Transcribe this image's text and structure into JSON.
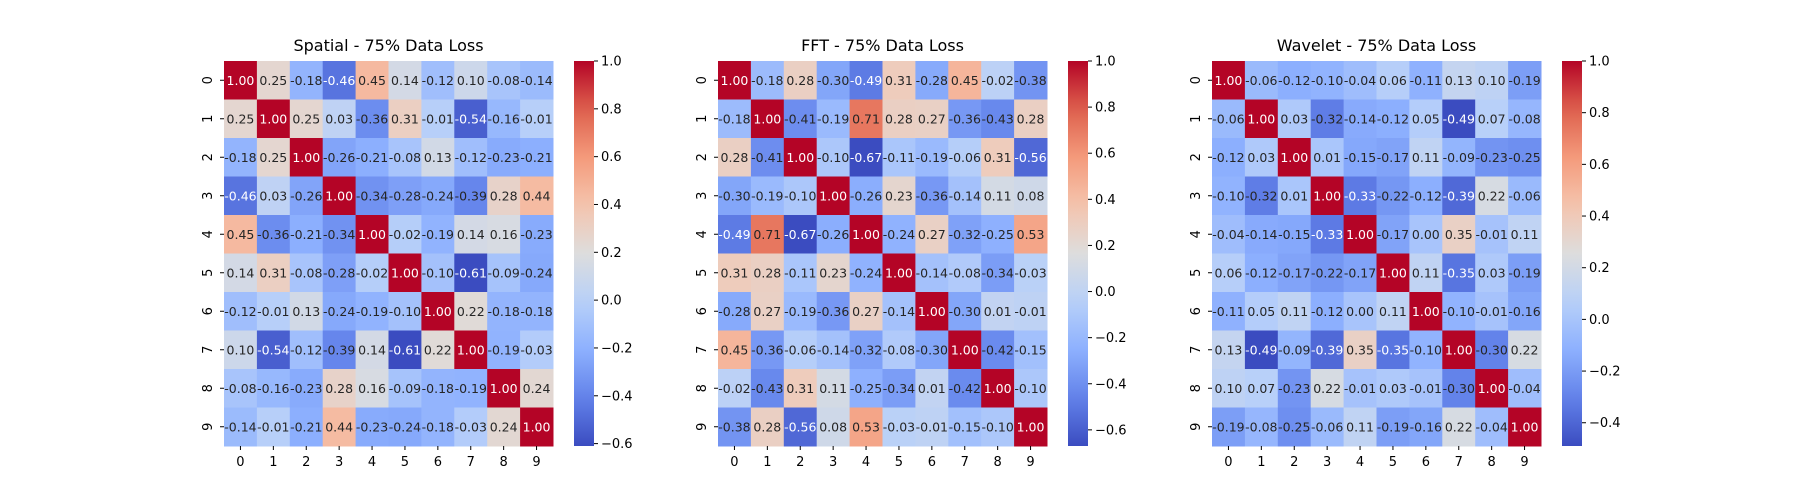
{
  "chart_data": [
    {
      "type": "heatmap",
      "title": "Spatial - 75% Data Loss",
      "x": [
        "0",
        "1",
        "2",
        "3",
        "4",
        "5",
        "6",
        "7",
        "8",
        "9"
      ],
      "y": [
        "0",
        "1",
        "2",
        "3",
        "4",
        "5",
        "6",
        "7",
        "8",
        "9"
      ],
      "vmin": -0.61,
      "vmax": 1.0,
      "colorbar_ticks": [
        "-0.6",
        "-0.4",
        "-0.2",
        "0.0",
        "0.2",
        "0.4",
        "0.6",
        "0.8",
        "1.0"
      ],
      "values": [
        [
          1.0,
          0.25,
          -0.18,
          -0.46,
          0.45,
          0.14,
          -0.12,
          0.1,
          -0.08,
          -0.14
        ],
        [
          0.25,
          1.0,
          0.25,
          0.03,
          -0.36,
          0.31,
          -0.01,
          -0.54,
          -0.16,
          -0.01
        ],
        [
          -0.18,
          0.25,
          1.0,
          -0.26,
          -0.21,
          -0.08,
          0.13,
          -0.12,
          -0.23,
          -0.21
        ],
        [
          -0.46,
          0.03,
          -0.26,
          1.0,
          -0.34,
          -0.28,
          -0.24,
          -0.39,
          0.28,
          0.44
        ],
        [
          0.45,
          -0.36,
          -0.21,
          -0.34,
          1.0,
          -0.02,
          -0.19,
          0.14,
          0.16,
          -0.23
        ],
        [
          0.14,
          0.31,
          -0.08,
          -0.28,
          -0.02,
          1.0,
          -0.1,
          -0.61,
          -0.09,
          -0.24
        ],
        [
          -0.12,
          -0.01,
          0.13,
          -0.24,
          -0.19,
          -0.1,
          1.0,
          0.22,
          -0.18,
          -0.18
        ],
        [
          0.1,
          -0.54,
          -0.12,
          -0.39,
          0.14,
          -0.61,
          0.22,
          1.0,
          -0.19,
          -0.03
        ],
        [
          -0.08,
          -0.16,
          -0.23,
          0.28,
          0.16,
          -0.09,
          -0.18,
          -0.19,
          1.0,
          0.24
        ],
        [
          -0.14,
          -0.01,
          -0.21,
          0.44,
          -0.23,
          -0.24,
          -0.18,
          -0.03,
          0.24,
          1.0
        ]
      ]
    },
    {
      "type": "heatmap",
      "title": "FFT - 75% Data Loss",
      "x": [
        "0",
        "1",
        "2",
        "3",
        "4",
        "5",
        "6",
        "7",
        "8",
        "9"
      ],
      "y": [
        "0",
        "1",
        "2",
        "3",
        "4",
        "5",
        "6",
        "7",
        "8",
        "9"
      ],
      "vmin": -0.67,
      "vmax": 1.0,
      "colorbar_ticks": [
        "-0.6",
        "-0.4",
        "-0.2",
        "0.0",
        "0.2",
        "0.4",
        "0.6",
        "0.8",
        "1.0"
      ],
      "values": [
        [
          1.0,
          -0.18,
          0.28,
          -0.3,
          -0.49,
          0.31,
          -0.28,
          0.45,
          -0.02,
          -0.38
        ],
        [
          -0.18,
          1.0,
          -0.41,
          -0.19,
          0.71,
          0.28,
          0.27,
          -0.36,
          -0.43,
          0.28
        ],
        [
          0.28,
          -0.41,
          1.0,
          -0.1,
          -0.67,
          -0.11,
          -0.19,
          -0.06,
          0.31,
          -0.56
        ],
        [
          -0.3,
          -0.19,
          -0.1,
          1.0,
          -0.26,
          0.23,
          -0.36,
          -0.14,
          0.11,
          0.08
        ],
        [
          -0.49,
          0.71,
          -0.67,
          -0.26,
          1.0,
          -0.24,
          0.27,
          -0.32,
          -0.25,
          0.53
        ],
        [
          0.31,
          0.28,
          -0.11,
          0.23,
          -0.24,
          1.0,
          -0.14,
          -0.08,
          -0.34,
          -0.03
        ],
        [
          -0.28,
          0.27,
          -0.19,
          -0.36,
          0.27,
          -0.14,
          1.0,
          -0.3,
          0.01,
          -0.01
        ],
        [
          0.45,
          -0.36,
          -0.06,
          -0.14,
          -0.32,
          -0.08,
          -0.3,
          1.0,
          -0.42,
          -0.15
        ],
        [
          -0.02,
          -0.43,
          0.31,
          0.11,
          -0.25,
          -0.34,
          0.01,
          -0.42,
          1.0,
          -0.1
        ],
        [
          -0.38,
          0.28,
          -0.56,
          0.08,
          0.53,
          -0.03,
          -0.01,
          -0.15,
          -0.1,
          1.0
        ]
      ]
    },
    {
      "type": "heatmap",
      "title": "Wavelet - 75% Data Loss",
      "x": [
        "0",
        "1",
        "2",
        "3",
        "4",
        "5",
        "6",
        "7",
        "8",
        "9"
      ],
      "y": [
        "0",
        "1",
        "2",
        "3",
        "4",
        "5",
        "6",
        "7",
        "8",
        "9"
      ],
      "vmin": -0.49,
      "vmax": 1.0,
      "colorbar_ticks": [
        "-0.4",
        "-0.2",
        "0.0",
        "0.2",
        "0.4",
        "0.6",
        "0.8",
        "1.0"
      ],
      "values": [
        [
          1.0,
          -0.06,
          -0.12,
          -0.1,
          -0.04,
          0.06,
          -0.11,
          0.13,
          0.1,
          -0.19
        ],
        [
          -0.06,
          1.0,
          0.03,
          -0.32,
          -0.14,
          -0.12,
          0.05,
          -0.49,
          0.07,
          -0.08
        ],
        [
          -0.12,
          0.03,
          1.0,
          0.01,
          -0.15,
          -0.17,
          0.11,
          -0.09,
          -0.23,
          -0.25
        ],
        [
          -0.1,
          -0.32,
          0.01,
          1.0,
          -0.33,
          -0.22,
          -0.12,
          -0.39,
          0.22,
          -0.06
        ],
        [
          -0.04,
          -0.14,
          -0.15,
          -0.33,
          1.0,
          -0.17,
          -0.0,
          0.35,
          -0.01,
          0.11
        ],
        [
          0.06,
          -0.12,
          -0.17,
          -0.22,
          -0.17,
          1.0,
          0.11,
          -0.35,
          0.03,
          -0.19
        ],
        [
          -0.11,
          0.05,
          0.11,
          -0.12,
          -0.0,
          0.11,
          1.0,
          -0.1,
          -0.01,
          -0.16
        ],
        [
          0.13,
          -0.49,
          -0.09,
          -0.39,
          0.35,
          -0.35,
          -0.1,
          1.0,
          -0.3,
          0.22
        ],
        [
          0.1,
          0.07,
          -0.23,
          0.22,
          -0.01,
          0.03,
          -0.01,
          -0.3,
          1.0,
          -0.04
        ],
        [
          -0.19,
          -0.08,
          -0.25,
          -0.06,
          0.11,
          -0.19,
          -0.16,
          0.22,
          -0.04,
          1.0
        ]
      ]
    }
  ]
}
